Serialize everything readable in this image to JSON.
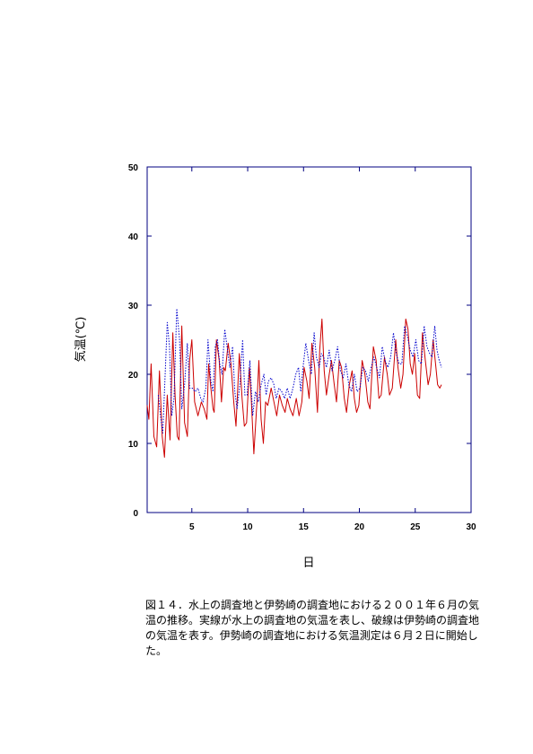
{
  "chart_data": {
    "type": "line",
    "xlabel": "日",
    "ylabel": "気温(℃)",
    "xlim": [
      1,
      30
    ],
    "ylim": [
      0,
      50
    ],
    "xticks": [
      5,
      10,
      15,
      20,
      25,
      30
    ],
    "yticks": [
      0,
      10,
      20,
      30,
      40,
      50
    ],
    "grid": false,
    "series": [
      {
        "style": "solid",
        "color": "#cc0000",
        "points": [
          [
            1.0,
            15.5
          ],
          [
            1.15,
            13.5
          ],
          [
            1.35,
            21.5
          ],
          [
            1.6,
            11
          ],
          [
            1.85,
            9.5
          ],
          [
            2.1,
            20.5
          ],
          [
            2.35,
            11
          ],
          [
            2.55,
            8
          ],
          [
            2.8,
            17
          ],
          [
            3.05,
            10.5
          ],
          [
            3.3,
            26
          ],
          [
            3.5,
            17
          ],
          [
            3.7,
            11
          ],
          [
            3.85,
            10.5
          ],
          [
            4.1,
            27
          ],
          [
            4.35,
            13
          ],
          [
            4.6,
            11
          ],
          [
            4.8,
            22
          ],
          [
            5.0,
            25
          ],
          [
            5.25,
            16
          ],
          [
            5.55,
            14
          ],
          [
            5.85,
            16
          ],
          [
            6.1,
            15
          ],
          [
            6.35,
            13.5
          ],
          [
            6.5,
            21.5
          ],
          [
            6.7,
            18
          ],
          [
            6.9,
            15
          ],
          [
            7.0,
            14.5
          ],
          [
            7.2,
            25
          ],
          [
            7.45,
            22
          ],
          [
            7.65,
            16
          ],
          [
            7.85,
            21
          ],
          [
            8.0,
            20.5
          ],
          [
            8.25,
            24.5
          ],
          [
            8.5,
            21.5
          ],
          [
            8.75,
            16
          ],
          [
            8.95,
            12.5
          ],
          [
            9.25,
            23
          ],
          [
            9.5,
            16.5
          ],
          [
            9.7,
            12.5
          ],
          [
            9.9,
            13
          ],
          [
            10.15,
            21
          ],
          [
            10.3,
            17
          ],
          [
            10.55,
            8.5
          ],
          [
            10.85,
            16.5
          ],
          [
            11.0,
            22
          ],
          [
            11.2,
            13.5
          ],
          [
            11.4,
            10
          ],
          [
            11.6,
            16
          ],
          [
            11.8,
            15.5
          ],
          [
            12.1,
            18
          ],
          [
            12.35,
            16
          ],
          [
            12.6,
            14
          ],
          [
            12.85,
            17
          ],
          [
            13.1,
            15.5
          ],
          [
            13.35,
            14.5
          ],
          [
            13.55,
            16.5
          ],
          [
            13.8,
            15
          ],
          [
            14.05,
            14
          ],
          [
            14.35,
            16.5
          ],
          [
            14.6,
            14
          ],
          [
            14.85,
            16
          ],
          [
            15.05,
            21
          ],
          [
            15.3,
            19
          ],
          [
            15.5,
            16.5
          ],
          [
            15.75,
            24.5
          ],
          [
            16.0,
            21
          ],
          [
            16.25,
            14.5
          ],
          [
            16.45,
            23.5
          ],
          [
            16.65,
            28
          ],
          [
            16.85,
            20.5
          ],
          [
            17.05,
            17
          ],
          [
            17.3,
            20
          ],
          [
            17.5,
            22
          ],
          [
            17.75,
            18.5
          ],
          [
            17.95,
            16
          ],
          [
            18.2,
            22
          ],
          [
            18.4,
            21
          ],
          [
            18.65,
            16.5
          ],
          [
            18.85,
            14.5
          ],
          [
            19.1,
            18.5
          ],
          [
            19.35,
            20.5
          ],
          [
            19.55,
            16.5
          ],
          [
            19.75,
            14.5
          ],
          [
            19.95,
            15.5
          ],
          [
            20.25,
            22
          ],
          [
            20.5,
            20
          ],
          [
            20.75,
            16
          ],
          [
            20.95,
            15
          ],
          [
            21.25,
            24
          ],
          [
            21.5,
            22
          ],
          [
            21.75,
            16.5
          ],
          [
            21.95,
            17
          ],
          [
            22.25,
            22.5
          ],
          [
            22.5,
            20
          ],
          [
            22.7,
            17
          ],
          [
            22.95,
            18
          ],
          [
            23.25,
            25
          ],
          [
            23.45,
            21
          ],
          [
            23.7,
            18
          ],
          [
            23.9,
            20
          ],
          [
            24.15,
            28
          ],
          [
            24.35,
            26.5
          ],
          [
            24.55,
            21.5
          ],
          [
            24.75,
            20
          ],
          [
            24.95,
            23
          ],
          [
            25.2,
            17
          ],
          [
            25.4,
            16.5
          ],
          [
            25.65,
            26
          ],
          [
            25.9,
            22
          ],
          [
            26.15,
            18.5
          ],
          [
            26.35,
            20
          ],
          [
            26.6,
            25
          ],
          [
            26.85,
            21
          ],
          [
            27.0,
            18.5
          ],
          [
            27.2,
            18
          ],
          [
            27.35,
            18.5
          ]
        ]
      },
      {
        "style": "dotted",
        "color": "#0000cc",
        "points": [
          [
            2.0,
            17
          ],
          [
            2.2,
            14
          ],
          [
            2.4,
            11.5
          ],
          [
            2.6,
            19.5
          ],
          [
            2.8,
            27.5
          ],
          [
            3.0,
            24
          ],
          [
            3.2,
            14
          ],
          [
            3.4,
            16.5
          ],
          [
            3.65,
            29.5
          ],
          [
            3.9,
            25
          ],
          [
            4.1,
            15
          ],
          [
            4.35,
            18.5
          ],
          [
            4.6,
            24.5
          ],
          [
            4.8,
            18
          ],
          [
            5.05,
            18
          ],
          [
            5.3,
            17.5
          ],
          [
            5.55,
            18
          ],
          [
            5.8,
            16.5
          ],
          [
            6.0,
            16
          ],
          [
            6.25,
            18
          ],
          [
            6.45,
            25
          ],
          [
            6.7,
            19
          ],
          [
            6.9,
            17.5
          ],
          [
            7.1,
            24
          ],
          [
            7.3,
            25
          ],
          [
            7.5,
            21.5
          ],
          [
            7.7,
            20
          ],
          [
            7.95,
            26.5
          ],
          [
            8.2,
            23.5
          ],
          [
            8.4,
            21
          ],
          [
            8.65,
            24
          ],
          [
            8.85,
            17.5
          ],
          [
            9.05,
            15
          ],
          [
            9.3,
            18.5
          ],
          [
            9.55,
            25
          ],
          [
            9.75,
            17
          ],
          [
            9.95,
            17
          ],
          [
            10.2,
            22
          ],
          [
            10.45,
            14
          ],
          [
            10.7,
            17.5
          ],
          [
            10.95,
            16
          ],
          [
            11.2,
            18.5
          ],
          [
            11.45,
            20
          ],
          [
            11.65,
            17
          ],
          [
            11.85,
            19
          ],
          [
            12.1,
            19.5
          ],
          [
            12.35,
            18.5
          ],
          [
            12.55,
            16.5
          ],
          [
            12.8,
            18
          ],
          [
            13.05,
            17.5
          ],
          [
            13.3,
            16.5
          ],
          [
            13.55,
            18
          ],
          [
            13.8,
            16.5
          ],
          [
            14.05,
            18
          ],
          [
            14.3,
            20
          ],
          [
            14.55,
            21
          ],
          [
            14.75,
            17.5
          ],
          [
            14.95,
            21
          ],
          [
            15.2,
            24.5
          ],
          [
            15.45,
            22
          ],
          [
            15.7,
            20
          ],
          [
            15.95,
            26
          ],
          [
            16.15,
            22.5
          ],
          [
            16.4,
            21
          ],
          [
            16.6,
            23
          ],
          [
            16.8,
            22.5
          ],
          [
            17.05,
            21
          ],
          [
            17.3,
            23.5
          ],
          [
            17.55,
            20.5
          ],
          [
            17.8,
            22
          ],
          [
            18.05,
            24
          ],
          [
            18.3,
            20.5
          ],
          [
            18.55,
            19.5
          ],
          [
            18.8,
            21.5
          ],
          [
            19.05,
            18.5
          ],
          [
            19.3,
            17.5
          ],
          [
            19.55,
            20
          ],
          [
            19.8,
            17.5
          ],
          [
            20.05,
            18
          ],
          [
            20.3,
            21
          ],
          [
            20.55,
            20.5
          ],
          [
            20.8,
            19
          ],
          [
            21.05,
            21
          ],
          [
            21.3,
            22.5
          ],
          [
            21.55,
            21
          ],
          [
            21.8,
            19.5
          ],
          [
            22.05,
            24
          ],
          [
            22.3,
            22
          ],
          [
            22.55,
            21
          ],
          [
            22.8,
            22.5
          ],
          [
            23.05,
            26
          ],
          [
            23.3,
            23
          ],
          [
            23.55,
            21.5
          ],
          [
            23.8,
            21.5
          ],
          [
            24.05,
            27
          ],
          [
            24.3,
            25.5
          ],
          [
            24.55,
            23.5
          ],
          [
            24.8,
            22.5
          ],
          [
            25.05,
            25
          ],
          [
            25.3,
            22
          ],
          [
            25.55,
            21.5
          ],
          [
            25.8,
            27
          ],
          [
            26.05,
            24
          ],
          [
            26.3,
            23
          ],
          [
            26.5,
            22.5
          ],
          [
            26.75,
            27
          ],
          [
            26.95,
            23.5
          ],
          [
            27.15,
            22
          ],
          [
            27.35,
            21
          ]
        ]
      }
    ]
  },
  "caption": "図１４．水上の調査地と伊勢崎の調査地における２００１年６月の気温の推移。実線が水上の調査地の気温を表し、破線は伊勢崎の調査地の気温を表す。伊勢崎の調査地における気温測定は６月２日に開始した。"
}
